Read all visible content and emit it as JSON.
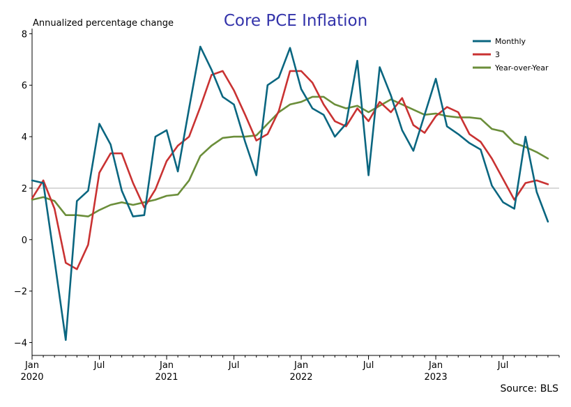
{
  "chart_data": {
    "type": "line",
    "title": "Core PCE Inflation",
    "ylabel": "Annualized percentage change",
    "source": "Source: BLS",
    "ylim": [
      -4.5,
      8.2
    ],
    "yticks": [
      -4,
      -2,
      0,
      2,
      4,
      6,
      8
    ],
    "ytick_labels": [
      "−4",
      "−2",
      "0",
      "2",
      "4",
      "6",
      "8"
    ],
    "reference_line_y": 2,
    "x_months": [
      "2020-01",
      "2020-02",
      "2020-03",
      "2020-04",
      "2020-05",
      "2020-06",
      "2020-07",
      "2020-08",
      "2020-09",
      "2020-10",
      "2020-11",
      "2020-12",
      "2021-01",
      "2021-02",
      "2021-03",
      "2021-04",
      "2021-05",
      "2021-06",
      "2021-07",
      "2021-08",
      "2021-09",
      "2021-10",
      "2021-11",
      "2021-12",
      "2022-01",
      "2022-02",
      "2022-03",
      "2022-04",
      "2022-05",
      "2022-06",
      "2022-07",
      "2022-08",
      "2022-09",
      "2022-10",
      "2022-11",
      "2022-12",
      "2023-01",
      "2023-02",
      "2023-03",
      "2023-04",
      "2023-05",
      "2023-06",
      "2023-07",
      "2023-08",
      "2023-09",
      "2023-10",
      "2023-11",
      "2023-12"
    ],
    "xticks": [
      {
        "month": "2020-01",
        "label": "Jan",
        "year": "2020"
      },
      {
        "month": "2020-07",
        "label": "Jul",
        "year": ""
      },
      {
        "month": "2021-01",
        "label": "Jan",
        "year": "2021"
      },
      {
        "month": "2021-07",
        "label": "Jul",
        "year": ""
      },
      {
        "month": "2022-01",
        "label": "Jan",
        "year": "2022"
      },
      {
        "month": "2022-07",
        "label": "Jul",
        "year": ""
      },
      {
        "month": "2023-01",
        "label": "Jan",
        "year": "2023"
      },
      {
        "month": "2023-07",
        "label": "Jul",
        "year": ""
      }
    ],
    "legend_position": "top-right",
    "series": [
      {
        "name": "Monthly",
        "color": "#0a6680",
        "values": [
          2.3,
          2.2,
          -0.8,
          -3.9,
          1.5,
          1.9,
          4.5,
          3.7,
          1.9,
          0.9,
          0.95,
          4.0,
          4.25,
          2.65,
          5.1,
          7.5,
          6.6,
          5.55,
          5.25,
          3.8,
          2.5,
          6.0,
          6.3,
          7.45,
          5.85,
          5.1,
          4.85,
          4.0,
          4.5,
          6.95,
          2.5,
          6.7,
          5.6,
          4.25,
          3.45,
          4.85,
          6.25,
          4.4,
          4.1,
          3.75,
          3.5,
          2.1,
          1.45,
          1.2,
          4.0,
          1.85,
          0.7,
          null
        ]
      },
      {
        "name": "3",
        "color": "#c93232",
        "values": [
          1.6,
          2.3,
          1.2,
          -0.9,
          -1.15,
          -0.2,
          2.6,
          3.35,
          3.35,
          2.2,
          1.25,
          1.95,
          3.05,
          3.65,
          4.0,
          5.15,
          6.4,
          6.55,
          5.8,
          4.85,
          3.85,
          4.1,
          5.0,
          6.55,
          6.55,
          6.1,
          5.25,
          4.6,
          4.4,
          5.1,
          4.6,
          5.35,
          4.95,
          5.5,
          4.45,
          4.15,
          4.8,
          5.15,
          4.95,
          4.1,
          3.8,
          3.15,
          2.35,
          1.55,
          2.2,
          2.3,
          2.15,
          null
        ]
      },
      {
        "name": "Year-over-Year",
        "color": "#6b8e3a",
        "values": [
          1.55,
          1.65,
          1.5,
          0.95,
          0.95,
          0.9,
          1.15,
          1.35,
          1.45,
          1.35,
          1.45,
          1.55,
          1.7,
          1.75,
          2.3,
          3.25,
          3.65,
          3.95,
          4.0,
          4.0,
          4.05,
          4.5,
          4.95,
          5.25,
          5.35,
          5.55,
          5.55,
          5.25,
          5.1,
          5.2,
          4.95,
          5.2,
          5.45,
          5.25,
          5.05,
          4.85,
          4.9,
          4.8,
          4.75,
          4.75,
          4.7,
          4.3,
          4.2,
          3.75,
          3.6,
          3.4,
          3.15,
          null
        ]
      }
    ]
  }
}
